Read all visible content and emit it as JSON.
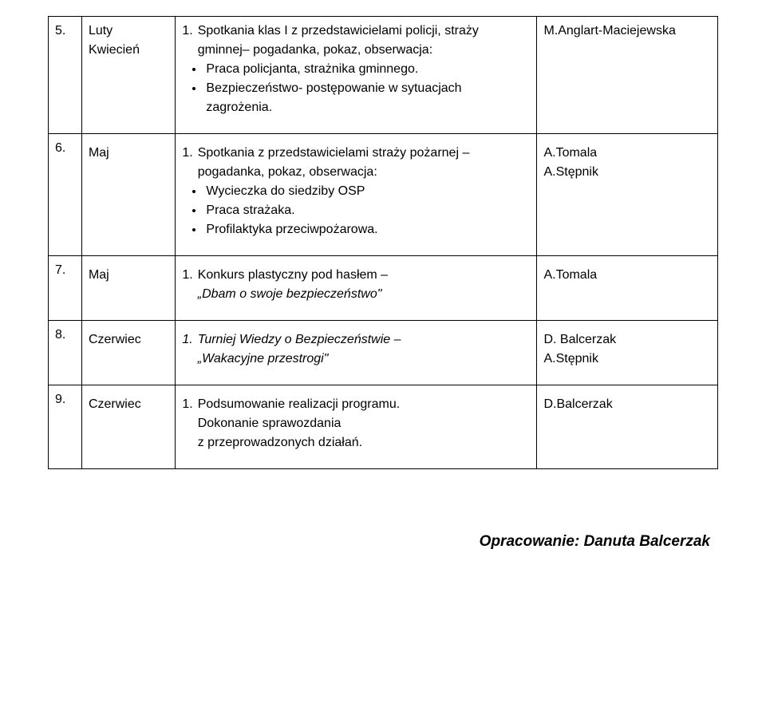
{
  "rows": [
    {
      "num": "5.",
      "period": "Luty\nKwiecień",
      "content": {
        "line": "1.  Spotkania klas I z przedstawicielami policji, straży gminnej– pogadanka, pokaz, obserwacja:",
        "bullets": [
          "Praca policjanta, strażnika gminnego.",
          "Bezpieczeństwo- postępowanie w sytuacjach zagrożenia."
        ]
      },
      "resp": "M.Anglart-Maciejewska"
    },
    {
      "num": "6.",
      "period": "Maj",
      "content": {
        "line": "1.  Spotkania z przedstawicielami straży pożarnej – pogadanka, pokaz, obserwacja:",
        "bullets": [
          "Wycieczka do siedziby OSP",
          "Praca strażaka.",
          "Profilaktyka przeciwpożarowa."
        ]
      },
      "resp": "A.Tomala\nA.Stępnik"
    },
    {
      "num": "7.",
      "period": "Maj",
      "content": {
        "line": "1.  Konkurs plastyczny pod hasłem –",
        "italic_line": "„Dbam o swoje bezpieczeństwo\"",
        "bullets": []
      },
      "resp": "A.Tomala"
    },
    {
      "num": "8.",
      "period": "Czerwiec",
      "content": {
        "italic_num": "1.",
        "italic_first": "Turniej Wiedzy o Bezpieczeństwie –\n„Wakacyjne przestrogi\"",
        "bullets": []
      },
      "resp": "D. Balcerzak\nA.Stępnik"
    },
    {
      "num": "9.",
      "period": "Czerwiec",
      "content": {
        "line": "1.  Podsumowanie realizacji programu.",
        "plain_after": "Dokonanie sprawozdania\nz przeprowadzonych działań.",
        "bullets": []
      },
      "resp": "D.Balcerzak"
    }
  ],
  "footer": "Opracowanie: Danuta Balcerzak",
  "style": {
    "font_family": "Comic Sans MS",
    "text_color": "#000000",
    "bg_color": "#ffffff",
    "border_color": "#000000",
    "base_fontsize": 16,
    "footer_fontsize": 19,
    "col_widths_pct": [
      5,
      14,
      54,
      27
    ]
  }
}
